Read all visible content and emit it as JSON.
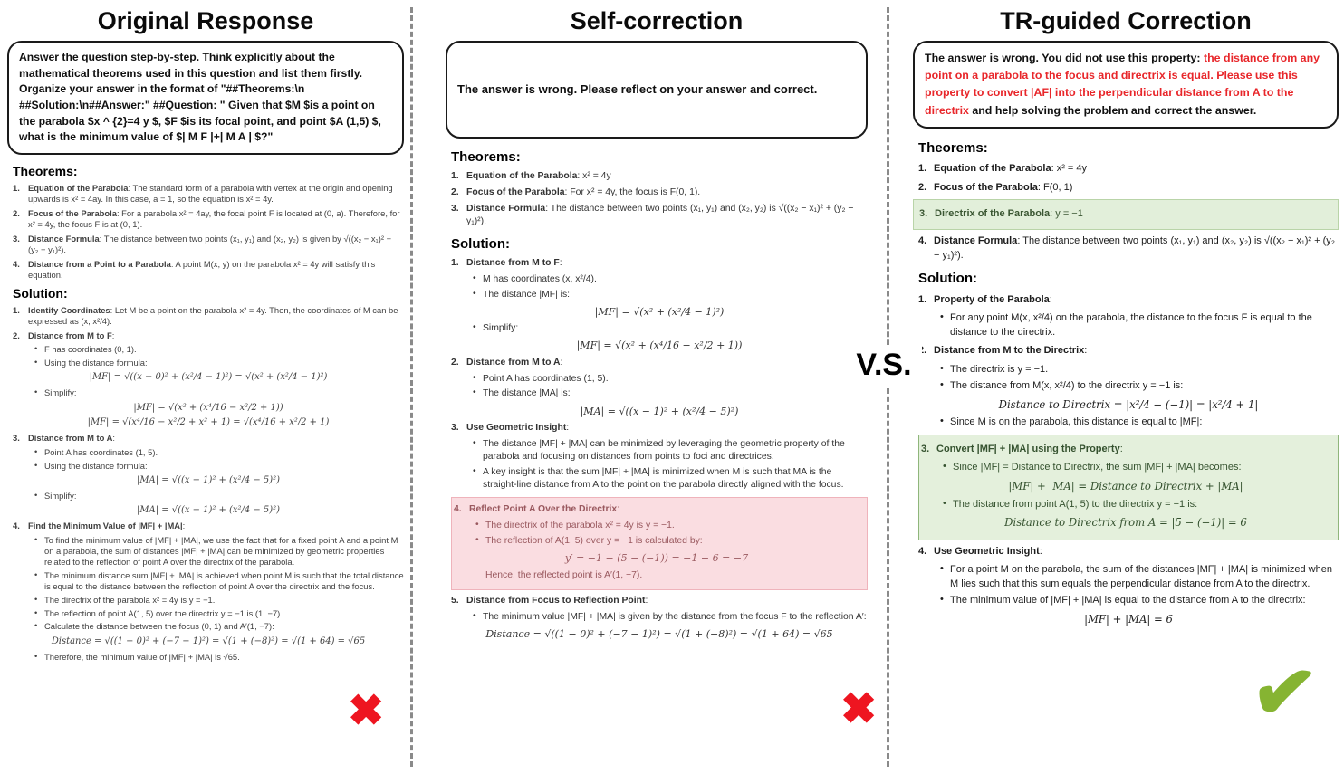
{
  "figure": {
    "vs_label": "V.S.",
    "colors": {
      "accent_red": "#e8262a",
      "x_mark_red": "#ee1520",
      "check_green": "#86b432",
      "highlight_green_bg": "#e4f0dc",
      "highlight_pink_bg": "#fadde1"
    },
    "icons": {
      "left_result": {
        "name": "x-mark-icon",
        "glyph": "✖"
      },
      "middle_result": {
        "name": "x-mark-icon",
        "glyph": "✖"
      },
      "right_result": {
        "name": "check-mark-icon",
        "glyph": "✔"
      }
    }
  },
  "columns": {
    "left": {
      "title": "Original Response",
      "prompt": {
        "segments": [
          {
            "color": "black",
            "text": "Answer the question step-by-step. Think explicitly about the mathematical theorems used in this question and list them firstly. Organize your answer in the format of \"##Theorems:\\n ##Solution:\\n##Answer:\" ##Question: \" Given that $M $is a point on the parabola $x ^ {2}=4 y $, $F $is its focal point, and point $A (1,5) $, what is the minimum value of $| M F |+| M A | $?\""
          }
        ]
      },
      "blocks": [
        {
          "t": "h",
          "text": "Theorems:"
        },
        {
          "t": "n",
          "num": "1.",
          "b": "Equation of the Parabola",
          "r": ": The standard form of a parabola with vertex at the origin and opening upwards is x² = 4ay. In this case, a = 1, so the equation is x² = 4y."
        },
        {
          "t": "n",
          "num": "2.",
          "b": "Focus of the Parabola",
          "r": ": For a parabola x² = 4ay, the focal point F is located at (0, a). Therefore, for x² = 4y, the focus F is at (0, 1)."
        },
        {
          "t": "n",
          "num": "3.",
          "b": "Distance Formula",
          "r": ": The distance between two points (x₁, y₁) and (x₂, y₂) is given by √((x₂ − x₁)² + (y₂ − y₁)²)."
        },
        {
          "t": "n",
          "num": "4.",
          "b": "Distance from a Point to a Parabola",
          "r": ": A point M(x, y) on the parabola x² = 4y will satisfy this equation."
        },
        {
          "t": "h",
          "text": "Solution:"
        },
        {
          "t": "n",
          "num": "1.",
          "b": "Identify Coordinates",
          "r": ": Let M be a point on the parabola x² = 4y. Then, the coordinates of M can be expressed as (x, x²/4)."
        },
        {
          "t": "n",
          "num": "2.",
          "b": "Distance from M to F",
          "r": ":"
        },
        {
          "t": "b",
          "text": "F has coordinates (0, 1)."
        },
        {
          "t": "b",
          "text": "Using the distance formula:"
        },
        {
          "t": "f",
          "text": "|MF| = √((x − 0)² + (x²/4 − 1)²) = √(x² + (x²/4 − 1)²)"
        },
        {
          "t": "b",
          "text": "Simplify:"
        },
        {
          "t": "f",
          "text": "|MF| = √(x² + (x⁴/16 − x²/2 + 1))"
        },
        {
          "t": "f",
          "text": "|MF| = √(x⁴/16 − x²/2 + x² + 1) = √(x⁴/16 + x²/2 + 1)"
        },
        {
          "t": "n",
          "num": "3.",
          "b": "Distance from M to A",
          "r": ":"
        },
        {
          "t": "b",
          "text": "Point A has coordinates (1, 5)."
        },
        {
          "t": "b",
          "text": "Using the distance formula:"
        },
        {
          "t": "f",
          "text": "|MA| = √((x − 1)² + (x²/4 − 5)²)"
        },
        {
          "t": "b",
          "text": "Simplify:"
        },
        {
          "t": "f",
          "text": "|MA| = √((x − 1)² + (x²/4 − 5)²)"
        },
        {
          "t": "n",
          "num": "4.",
          "b": "Find the Minimum Value of |MF| + |MA|",
          "r": ":"
        },
        {
          "t": "b",
          "text": "To find the minimum value of |MF| + |MA|, we use the fact that for a fixed point A and a point M on a parabola, the sum of distances |MF| + |MA| can be minimized by geometric properties related to the reflection of point A over the directrix of the parabola."
        },
        {
          "t": "b",
          "text": "The minimum distance sum |MF| + |MA| is achieved when point M is such that the total distance is equal to the distance between the reflection of point A over the directrix and the focus."
        },
        {
          "t": "b",
          "text": "The directrix of the parabola x² = 4y is y = −1."
        },
        {
          "t": "b",
          "text": "The reflection of point A(1, 5) over the directrix y = −1 is (1, −7)."
        },
        {
          "t": "b",
          "text": "Calculate the distance between the focus (0, 1) and A′(1, −7):"
        },
        {
          "t": "f",
          "text": "Distance = √((1 − 0)² + (−7 − 1)²) = √(1 + (−8)²) = √(1 + 64) = √65"
        },
        {
          "t": "b",
          "text": "Therefore, the minimum value of |MF| + |MA| is √65."
        }
      ]
    },
    "middle": {
      "title": "Self-correction",
      "prompt": {
        "segments": [
          {
            "color": "black",
            "text": "The answer is wrong. Please reflect on your answer and correct."
          }
        ]
      },
      "blocks": [
        {
          "t": "h",
          "text": "Theorems:"
        },
        {
          "t": "n",
          "num": "1.",
          "b": "Equation of the Parabola",
          "r": ": x² = 4y"
        },
        {
          "t": "n",
          "num": "2.",
          "b": "Focus of the Parabola",
          "r": ": For x² = 4y, the focus is F(0, 1)."
        },
        {
          "t": "n",
          "num": "3.",
          "b": "Distance Formula",
          "r": ": The distance between two points (x₁, y₁) and (x₂, y₂) is √((x₂ − x₁)² + (y₂ − y₁)²)."
        },
        {
          "t": "h",
          "text": "Solution:"
        },
        {
          "t": "n",
          "num": "1.",
          "b": "Distance from M to F",
          "r": ":"
        },
        {
          "t": "b",
          "text": "M has coordinates (x, x²/4)."
        },
        {
          "t": "b",
          "text": "The distance |MF| is:"
        },
        {
          "t": "f",
          "text": "|MF| = √(x² + (x²/4 − 1)²)"
        },
        {
          "t": "b",
          "text": "Simplify:"
        },
        {
          "t": "f",
          "text": "|MF| = √(x² + (x⁴/16 − x²/2 + 1))"
        },
        {
          "t": "n",
          "num": "2.",
          "b": "Distance from M to A",
          "r": ":"
        },
        {
          "t": "b",
          "text": "Point A has coordinates (1, 5)."
        },
        {
          "t": "b",
          "text": "The distance |MA| is:"
        },
        {
          "t": "f",
          "text": "|MA| = √((x − 1)² + (x²/4 − 5)²)"
        },
        {
          "t": "n",
          "num": "3.",
          "b": "Use Geometric Insight",
          "r": ":"
        },
        {
          "t": "b",
          "text": "The distance |MF| + |MA| can be minimized by leveraging the geometric property of the parabola and focusing on distances from points to foci and directrices."
        },
        {
          "t": "b",
          "text": "A key insight is that the sum |MF| + |MA| is minimized when M is such that MA is the straight-line distance from A to the point on the parabola directly aligned with the focus."
        },
        {
          "t": "g",
          "hl": "pink",
          "blocks": [
            {
              "t": "n",
              "num": "4.",
              "b": "Reflect Point A Over the Directrix",
              "r": ":"
            },
            {
              "t": "b",
              "text": "The directrix of the parabola x² = 4y is y = −1."
            },
            {
              "t": "b",
              "text": "The reflection of A(1, 5) over y = −1 is calculated by:"
            },
            {
              "t": "f",
              "text": "y′ = −1 − (5 − (−1)) = −1 − 6 = −7"
            },
            {
              "t": "p",
              "text": "Hence, the reflected point is A′(1, −7)."
            }
          ]
        },
        {
          "t": "n",
          "num": "5.",
          "b": "Distance from Focus to Reflection Point",
          "r": ":"
        },
        {
          "t": "b",
          "text": "The minimum value |MF| + |MA| is given by the distance from the focus F to the reflection A′:"
        },
        {
          "t": "f",
          "text": "Distance = √((1 − 0)² + (−7 − 1)²) = √(1 + (−8)²) = √(1 + 64) = √65"
        }
      ]
    },
    "right": {
      "title": "TR-guided Correction",
      "prompt": {
        "segments": [
          {
            "color": "black",
            "text": "The answer is wrong. You did not use this property:"
          },
          {
            "color": "red",
            "text": "the distance from any point on a parabola to the focus and directrix is equal. Please use this property to convert |AF| into the perpendicular distance from A to the directrix"
          },
          {
            "color": "black",
            "text": "and help solving the problem and correct the answer."
          }
        ]
      },
      "blocks": [
        {
          "t": "h",
          "text": "Theorems:"
        },
        {
          "t": "n",
          "num": "1.",
          "b": "Equation of the Parabola",
          "r": ": x² = 4y"
        },
        {
          "t": "n",
          "num": "2.",
          "b": "Focus of the Parabola",
          "r": ": F(0, 1)"
        },
        {
          "t": "g",
          "hl": "green-row",
          "blocks": [
            {
              "t": "n",
              "num": "3.",
              "b": "Directrix of the Parabola",
              "r": ": y = −1"
            }
          ]
        },
        {
          "t": "n",
          "num": "4.",
          "b": "Distance Formula",
          "r": ": The distance between two points (x₁, y₁) and (x₂, y₂) is √((x₂ − x₁)² + (y₂ − y₁)²)."
        },
        {
          "t": "h",
          "text": "Solution:"
        },
        {
          "t": "n",
          "num": "1.",
          "b": "Property of the Parabola",
          "r": ":"
        },
        {
          "t": "b",
          "text": "For any point M(x, x²/4) on the parabola, the distance to the focus F is equal to the distance to the directrix."
        },
        {
          "t": "n",
          "num": "2.",
          "b": "Distance from M to the Directrix",
          "r": ":"
        },
        {
          "t": "b",
          "text": "The directrix is y = −1."
        },
        {
          "t": "b",
          "text": "The distance from M(x, x²/4) to the directrix y = −1 is:"
        },
        {
          "t": "f",
          "text": "Distance to Directrix = |x²/4 − (−1)| = |x²/4 + 1|"
        },
        {
          "t": "b",
          "text": "Since M is on the parabola, this distance is equal to |MF|:"
        },
        {
          "t": "g",
          "hl": "green",
          "blocks": [
            {
              "t": "n",
              "num": "3.",
              "b": "Convert |MF| + |MA| using the Property",
              "r": ":"
            },
            {
              "t": "b",
              "text": "Since |MF| = Distance to Directrix, the sum |MF| + |MA| becomes:"
            },
            {
              "t": "f",
              "text": "|MF| + |MA| = Distance to Directrix + |MA|"
            },
            {
              "t": "b",
              "text": "The distance from point A(1, 5) to the directrix y = −1 is:"
            },
            {
              "t": "f",
              "text": "Distance to Directrix from A = |5 − (−1)| = 6"
            }
          ]
        },
        {
          "t": "n",
          "num": "4.",
          "b": "Use Geometric Insight",
          "r": ":"
        },
        {
          "t": "b",
          "text": "For a point M on the parabola, the sum of the distances |MF| + |MA| is minimized when M lies such that this sum equals the perpendicular distance from A to the directrix."
        },
        {
          "t": "b",
          "text": "The minimum value of |MF| + |MA| is equal to the distance from A to the directrix:"
        },
        {
          "t": "f",
          "text": "|MF| + |MA| = 6"
        }
      ]
    }
  }
}
